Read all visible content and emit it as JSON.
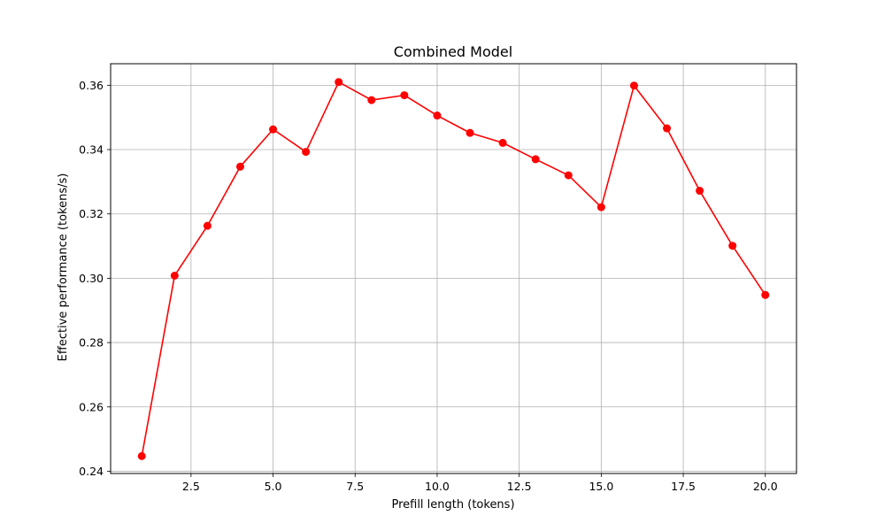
{
  "chart_data": {
    "type": "line",
    "title": "Combined Model",
    "xlabel": "Prefill length (tokens)",
    "ylabel": "Effective performance (tokens/s)",
    "xlim": [
      0.05,
      20.95
    ],
    "ylim": [
      0.2393,
      0.3667
    ],
    "xticks": [
      2.5,
      5.0,
      7.5,
      10.0,
      12.5,
      15.0,
      17.5,
      20.0
    ],
    "xtick_labels": [
      "2.5",
      "5.0",
      "7.5",
      "10.0",
      "12.5",
      "15.0",
      "17.5",
      "20.0"
    ],
    "yticks": [
      0.24,
      0.26,
      0.28,
      0.3,
      0.32,
      0.34,
      0.36
    ],
    "ytick_labels": [
      "0.24",
      "0.26",
      "0.28",
      "0.30",
      "0.32",
      "0.34",
      "0.36"
    ],
    "grid": true,
    "color": "#ff0000",
    "marker": "circle",
    "series": [
      {
        "x": [
          1,
          2,
          3,
          4,
          5,
          6,
          7,
          8,
          9,
          10,
          11,
          12,
          13,
          14,
          15,
          16,
          17,
          18,
          19,
          20
        ],
        "values": [
          0.2447,
          0.3008,
          0.3163,
          0.3347,
          0.3463,
          0.3393,
          0.361,
          0.3554,
          0.3569,
          0.3506,
          0.3452,
          0.3421,
          0.337,
          0.332,
          0.3221,
          0.3599,
          0.3466,
          0.3272,
          0.3101,
          0.2948
        ]
      }
    ]
  }
}
